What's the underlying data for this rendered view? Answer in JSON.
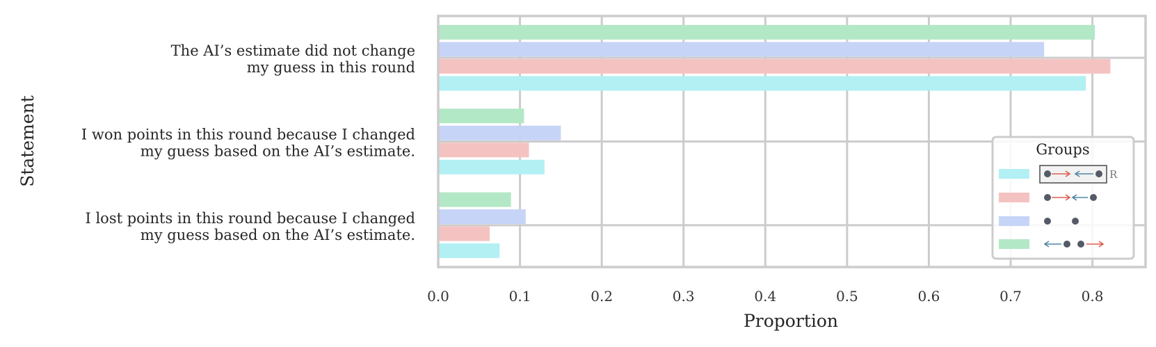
{
  "chart_data": {
    "type": "bar",
    "orientation": "horizontal",
    "title": "",
    "xlabel": "Proportion",
    "ylabel": "Statement",
    "xlim": [
      0,
      0.865
    ],
    "xticks": [
      "0.0",
      "0.1",
      "0.2",
      "0.3",
      "0.4",
      "0.5",
      "0.6",
      "0.7",
      "0.8"
    ],
    "grid": true,
    "legend": {
      "title": "Groups",
      "placement": "lower-right",
      "highlight_label": "R"
    },
    "categories": [
      [
        "The AI’s estimate did not change",
        "my guess in this round"
      ],
      [
        "I won points in this round because I changed",
        "my guess based on the AI’s estimate."
      ],
      [
        "I lost points in this round because I changed",
        "my guess based on the AI’s estimate."
      ]
    ],
    "series": [
      {
        "glyph": "leftarrow-dots-rightarrow",
        "color": "#b3e8c6",
        "values": [
          0.803,
          0.105,
          0.089
        ]
      },
      {
        "glyph": "dots-apart",
        "color": "#c6d4f7",
        "values": [
          0.741,
          0.15,
          0.107
        ]
      },
      {
        "glyph": "dot-rightarrow-leftarrow-dot",
        "color": "#f5c2c2",
        "values": [
          0.822,
          0.111,
          0.063
        ]
      },
      {
        "glyph": "dot-rightarrow-leftarrow-dot-boxed",
        "color": "#b2f0f4",
        "values": [
          0.792,
          0.13,
          0.075
        ]
      }
    ],
    "legend_order": [
      3,
      2,
      1,
      0
    ]
  }
}
